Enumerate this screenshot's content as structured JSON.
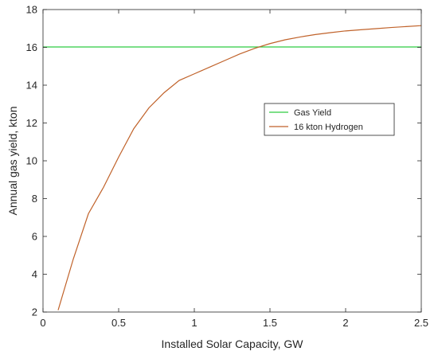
{
  "chart_data": {
    "type": "line",
    "title": "",
    "xlabel": "Installed Solar Capacity, GW",
    "ylabel": "Annual gas yield, kton",
    "xlim": [
      0,
      2.5
    ],
    "ylim": [
      2,
      18
    ],
    "xticks": [
      0,
      0.5,
      1,
      1.5,
      2,
      2.5
    ],
    "xtick_labels": [
      "0",
      "0.5",
      "1",
      "1.5",
      "2",
      "2.5"
    ],
    "yticks": [
      2,
      4,
      6,
      8,
      10,
      12,
      14,
      16,
      18
    ],
    "ytick_labels": [
      "2",
      "4",
      "6",
      "8",
      "10",
      "12",
      "14",
      "16",
      "18"
    ],
    "grid": false,
    "legend_position": "center-right",
    "series": [
      {
        "name": "Gas Yield",
        "color": "#2ecc40",
        "x": [
          0,
          2.5
        ],
        "y": [
          16.02,
          16.02
        ]
      },
      {
        "name": "16 kton Hydrogen",
        "color": "#c0622a",
        "x": [
          0.1,
          0.2,
          0.3,
          0.4,
          0.5,
          0.6,
          0.7,
          0.8,
          0.9,
          1.0,
          1.1,
          1.2,
          1.3,
          1.4,
          1.5,
          1.6,
          1.7,
          1.8,
          1.9,
          2.0,
          2.1,
          2.2,
          2.3,
          2.4,
          2.5
        ],
        "y": [
          2.1,
          4.8,
          7.2,
          8.6,
          10.2,
          11.7,
          12.8,
          13.6,
          14.25,
          14.6,
          14.95,
          15.3,
          15.65,
          15.95,
          16.2,
          16.4,
          16.55,
          16.68,
          16.78,
          16.87,
          16.93,
          16.99,
          17.05,
          17.1,
          17.15
        ]
      }
    ]
  }
}
